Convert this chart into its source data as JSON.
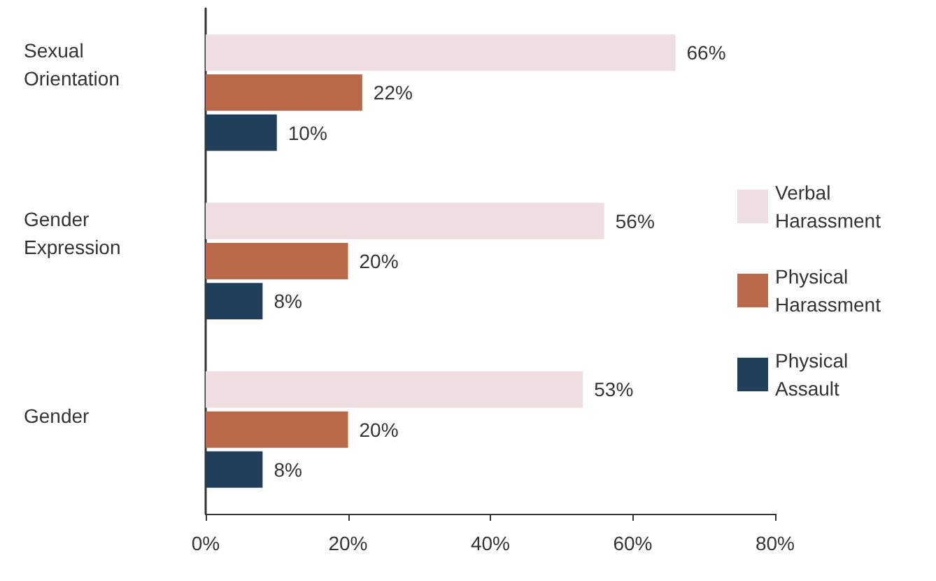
{
  "chart_data": {
    "type": "bar",
    "orientation": "horizontal",
    "categories": [
      "Sexual Orientation",
      "Gender Expression",
      "Gender"
    ],
    "series": [
      {
        "name": "Verbal Harassment",
        "color": "#eedde1",
        "values": [
          66,
          56,
          53
        ],
        "value_labels": [
          "66%",
          "56%",
          "53%"
        ]
      },
      {
        "name": "Physical Harassment",
        "color": "#b8694a",
        "values": [
          22,
          20,
          20
        ],
        "value_labels": [
          "22%",
          "20%",
          "20%"
        ]
      },
      {
        "name": "Physical Assault",
        "color": "#1f3f5a",
        "values": [
          10,
          8,
          8
        ],
        "value_labels": [
          "10%",
          "8%",
          "8%"
        ]
      }
    ],
    "xlim": [
      0,
      80
    ],
    "xticks": [
      {
        "value": 0,
        "label": "0%"
      },
      {
        "value": 20,
        "label": "20%"
      },
      {
        "value": 40,
        "label": "40%"
      },
      {
        "value": 60,
        "label": "60%"
      },
      {
        "value": 80,
        "label": "80%"
      }
    ],
    "grid": false,
    "legend": "right"
  }
}
